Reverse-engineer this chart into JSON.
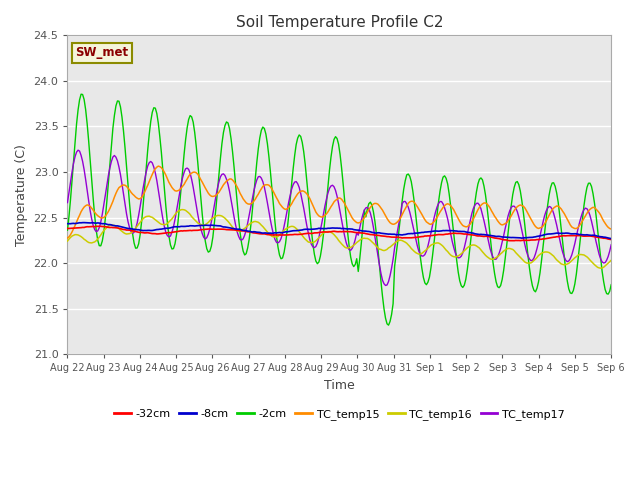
{
  "title": "Soil Temperature Profile C2",
  "xlabel": "Time",
  "ylabel": "Temperature (C)",
  "ylim": [
    21.0,
    24.5
  ],
  "yticks": [
    21.0,
    21.5,
    22.0,
    22.5,
    23.0,
    23.5,
    24.0,
    24.5
  ],
  "figure_bg": "#ffffff",
  "plot_bg": "#e8e8e8",
  "annotation_text": "SW_met",
  "annotation_fg": "#8b0000",
  "annotation_bg": "#f5f5dc",
  "annotation_border": "#8b8b00",
  "series_colors": {
    "-32cm": "#ff0000",
    "-8cm": "#0000cd",
    "-2cm": "#00cc00",
    "TC_temp15": "#ff8c00",
    "TC_temp16": "#cccc00",
    "TC_temp17": "#9400d3"
  },
  "legend_labels": [
    "-32cm",
    "-8cm",
    "-2cm",
    "TC_temp15",
    "TC_temp16",
    "TC_temp17"
  ],
  "legend_colors": [
    "#ff0000",
    "#0000cd",
    "#00cc00",
    "#ff8c00",
    "#cccc00",
    "#9400d3"
  ]
}
